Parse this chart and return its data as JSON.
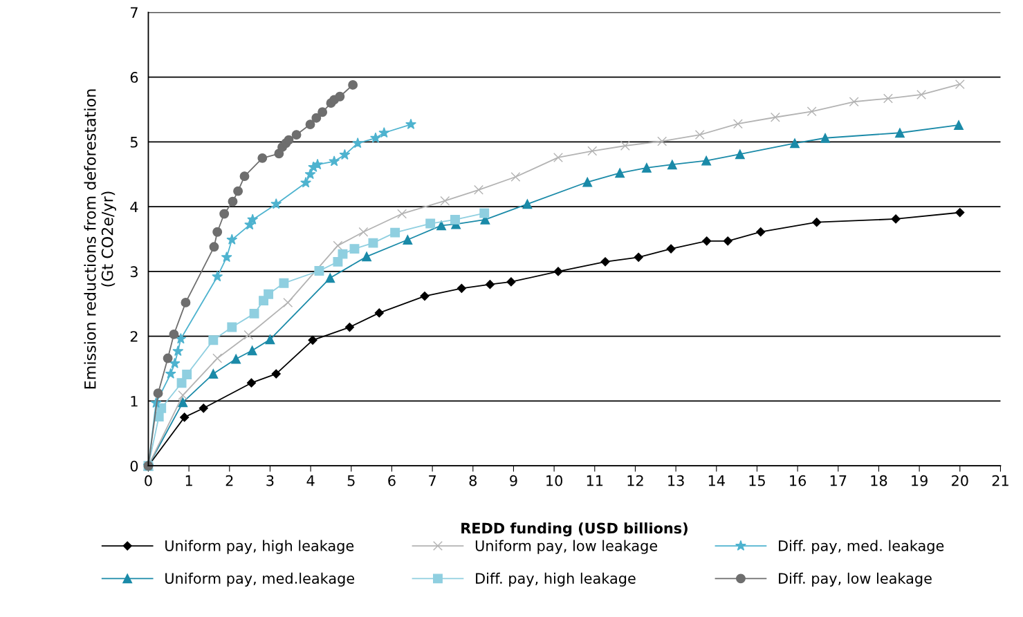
{
  "chart_data": {
    "type": "line",
    "xlabel": "REDD funding (USD billions)",
    "ylabel": "Emission reductions from deforestation\n(Gt CO2e/yr)",
    "xlim": [
      0,
      21
    ],
    "xticks": [
      0,
      1,
      2,
      3,
      4,
      5,
      6,
      7,
      8,
      9,
      10,
      11,
      12,
      13,
      14,
      15,
      16,
      17,
      18,
      19,
      20,
      21
    ],
    "ylim": [
      0,
      7
    ],
    "yticks": [
      0,
      1,
      2,
      3,
      4,
      5,
      6,
      7
    ],
    "grid": "y",
    "legend": "bottom",
    "series": [
      {
        "name": "Uniform pay, high leakage",
        "color": "#000000",
        "marker": "diamond",
        "x": [
          0,
          0.89,
          1.36,
          2.54,
          3.15,
          4.05,
          4.96,
          5.69,
          6.81,
          7.72,
          8.42,
          8.94,
          10.1,
          11.26,
          12.08,
          12.88,
          13.76,
          14.28,
          15.09,
          16.47,
          18.42,
          20.0
        ],
        "values": [
          0,
          0.75,
          0.89,
          1.28,
          1.42,
          1.94,
          2.14,
          2.36,
          2.62,
          2.74,
          2.8,
          2.84,
          3.0,
          3.15,
          3.22,
          3.35,
          3.47,
          3.47,
          3.61,
          3.76,
          3.81,
          3.91
        ]
      },
      {
        "name": "Uniform pay, med.leakage",
        "color": "#1a8aa8",
        "marker": "triangle",
        "x": [
          0,
          0.85,
          1.6,
          2.16,
          2.56,
          3.0,
          4.48,
          5.38,
          6.39,
          7.22,
          7.58,
          8.3,
          9.34,
          10.82,
          11.62,
          12.28,
          12.91,
          13.75,
          14.58,
          15.93,
          16.68,
          18.52,
          19.97
        ],
        "values": [
          0,
          0.98,
          1.42,
          1.65,
          1.78,
          1.95,
          2.9,
          3.23,
          3.49,
          3.71,
          3.73,
          3.8,
          4.04,
          4.38,
          4.52,
          4.6,
          4.65,
          4.71,
          4.81,
          4.98,
          5.06,
          5.14,
          5.26
        ]
      },
      {
        "name": "Uniform pay, low leakage",
        "color": "#b3b3b3",
        "marker": "cross",
        "x": [
          0,
          0.85,
          1.7,
          2.47,
          3.44,
          4.67,
          5.3,
          6.25,
          7.31,
          8.14,
          9.05,
          10.1,
          10.94,
          11.75,
          12.66,
          13.59,
          14.53,
          15.45,
          16.35,
          17.39,
          18.23,
          19.05,
          20.0
        ],
        "values": [
          0,
          1.09,
          1.66,
          2.02,
          2.52,
          3.4,
          3.61,
          3.89,
          4.09,
          4.26,
          4.46,
          4.76,
          4.86,
          4.94,
          5.01,
          5.11,
          5.28,
          5.38,
          5.47,
          5.62,
          5.67,
          5.73,
          5.89
        ]
      },
      {
        "name": "Diff. pay, high leakage",
        "color": "#8fcfe0",
        "marker": "square",
        "x": [
          0,
          0.26,
          0.32,
          0.82,
          0.95,
          1.6,
          2.06,
          2.61,
          2.84,
          2.96,
          3.34,
          4.21,
          4.67,
          4.79,
          5.08,
          5.54,
          6.08,
          6.95,
          7.56,
          8.28
        ],
        "values": [
          0,
          0.76,
          0.89,
          1.28,
          1.41,
          1.94,
          2.14,
          2.35,
          2.55,
          2.65,
          2.82,
          3.01,
          3.15,
          3.27,
          3.35,
          3.44,
          3.6,
          3.74,
          3.8,
          3.9
        ]
      },
      {
        "name": "Diff. pay, med. leakage",
        "color": "#4eb3cf",
        "marker": "star",
        "x": [
          0,
          0.19,
          0.55,
          0.65,
          0.73,
          0.8,
          1.7,
          1.93,
          2.06,
          2.5,
          2.57,
          3.15,
          3.88,
          3.99,
          4.07,
          4.17,
          4.58,
          4.84,
          5.16,
          5.6,
          5.81,
          6.47
        ],
        "values": [
          0,
          0.97,
          1.42,
          1.58,
          1.77,
          1.96,
          2.92,
          3.22,
          3.49,
          3.72,
          3.8,
          4.04,
          4.37,
          4.5,
          4.61,
          4.65,
          4.7,
          4.8,
          4.98,
          5.06,
          5.14,
          5.27
        ]
      },
      {
        "name": "Diff. pay, low leakage",
        "color": "#6e6e6e",
        "marker": "circle",
        "x": [
          0,
          0.24,
          0.48,
          0.63,
          0.92,
          1.62,
          1.7,
          1.87,
          2.08,
          2.21,
          2.37,
          2.81,
          3.22,
          3.3,
          3.39,
          3.46,
          3.65,
          3.99,
          4.14,
          4.29,
          4.5,
          4.58,
          4.72,
          5.04
        ],
        "values": [
          0,
          1.12,
          1.66,
          2.03,
          2.52,
          3.38,
          3.61,
          3.89,
          4.08,
          4.24,
          4.47,
          4.75,
          4.82,
          4.92,
          4.98,
          5.03,
          5.11,
          5.27,
          5.37,
          5.46,
          5.6,
          5.65,
          5.7,
          5.88
        ]
      }
    ]
  }
}
